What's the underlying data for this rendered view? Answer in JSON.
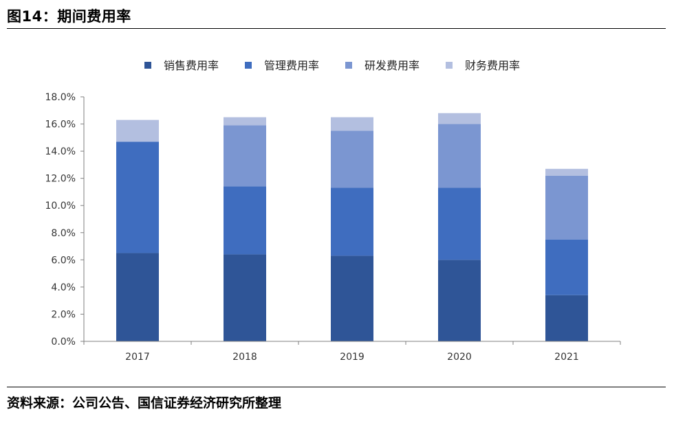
{
  "header": {
    "title": "图14：期间费用率"
  },
  "footer": {
    "source": "资料来源：公司公告、国信证券经济研究所整理"
  },
  "chart_data": {
    "type": "bar",
    "stacked": true,
    "categories": [
      "2017",
      "2018",
      "2019",
      "2020",
      "2021"
    ],
    "series": [
      {
        "name": "销售费用率",
        "color": "#2f5597",
        "values": [
          6.5,
          6.4,
          6.3,
          6.0,
          3.4
        ]
      },
      {
        "name": "管理费用率",
        "color": "#3f6dbf",
        "values": [
          8.2,
          5.0,
          5.0,
          5.3,
          4.1
        ]
      },
      {
        "name": "研发费用率",
        "color": "#7b96d1",
        "values": [
          0.0,
          4.5,
          4.2,
          4.7,
          4.7
        ]
      },
      {
        "name": "财务费用率",
        "color": "#b3bfe0",
        "values": [
          1.6,
          0.6,
          1.0,
          0.8,
          0.5
        ]
      }
    ],
    "yticks": [
      "0.0%",
      "2.0%",
      "4.0%",
      "6.0%",
      "8.0%",
      "10.0%",
      "12.0%",
      "14.0%",
      "16.0%",
      "18.0%"
    ],
    "ylim": [
      0,
      18
    ],
    "legend_position": "top-center",
    "grid": false
  }
}
